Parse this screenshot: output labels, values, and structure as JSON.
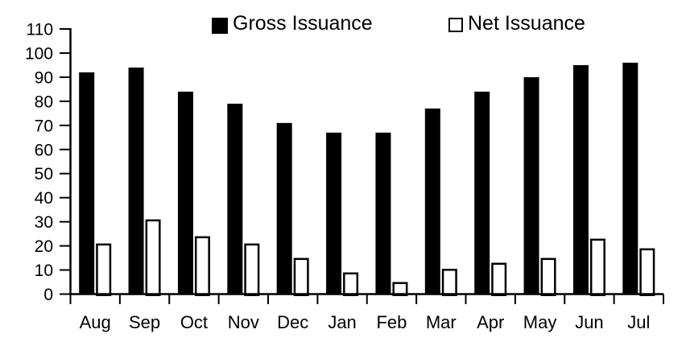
{
  "chart_data": {
    "type": "bar",
    "title": "",
    "categories": [
      "Aug",
      "Sep",
      "Oct",
      "Nov",
      "Dec",
      "Jan",
      "Feb",
      "Mar",
      "Apr",
      "May",
      "Jun",
      "Jul"
    ],
    "series": [
      {
        "name": "Gross Issuance",
        "swatch": "black-filled-square",
        "fill": "#000000",
        "stroke": "#000000",
        "values": [
          92,
          94,
          84,
          79,
          71,
          67,
          67,
          77,
          84,
          90,
          95,
          96
        ]
      },
      {
        "name": "Net Issuance",
        "swatch": "white-outlined-square",
        "fill": "#FFFFFF",
        "stroke": "#000000",
        "values": [
          21,
          31,
          24,
          21,
          15,
          9,
          5,
          10.5,
          13,
          15,
          23,
          19
        ]
      }
    ],
    "xlabel": "",
    "ylabel": "",
    "ylim": [
      0,
      110
    ],
    "yticks": [
      0,
      10,
      20,
      30,
      40,
      50,
      60,
      70,
      80,
      90,
      100,
      110
    ],
    "grid": false,
    "legend_position": "top"
  },
  "colors": {
    "background": "#FFFFFF",
    "axis": "#000000",
    "text": "#000000"
  }
}
